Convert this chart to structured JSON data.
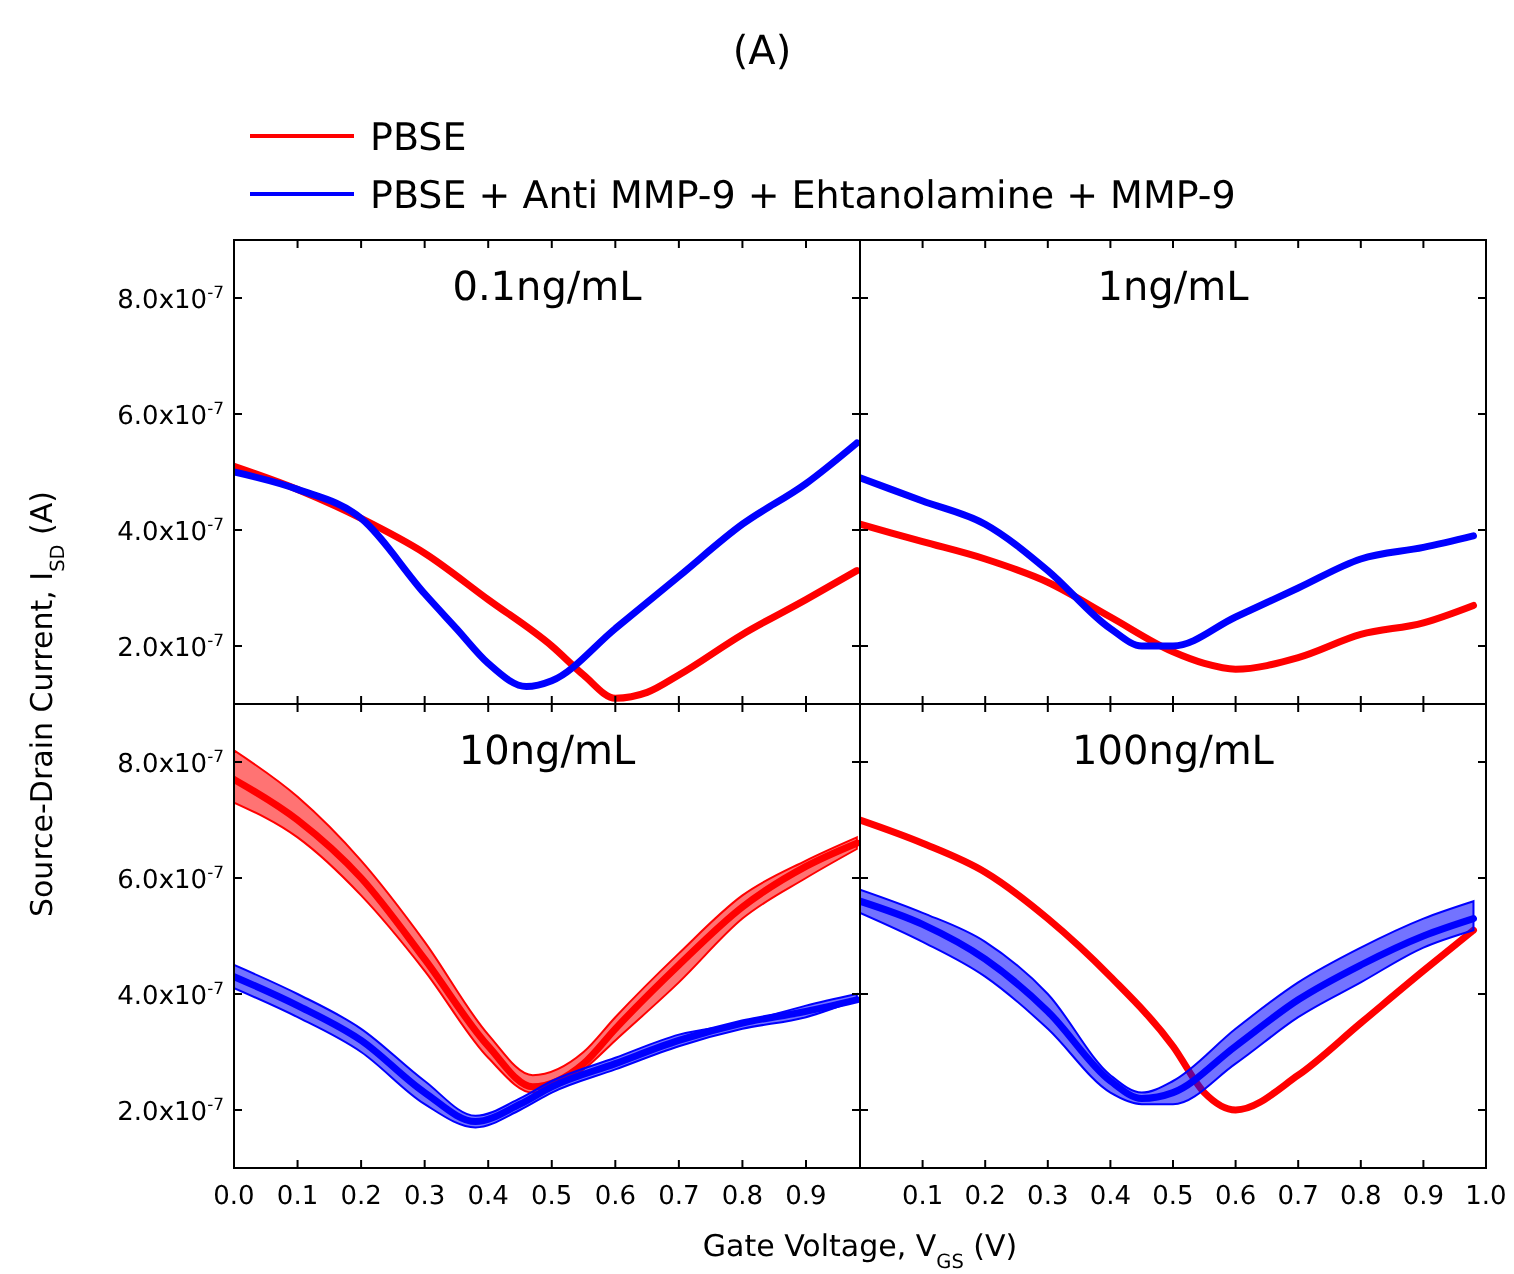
{
  "chart_data": [
    {
      "type": "line",
      "title": "(A)",
      "subtitle": "0.1ng/mL",
      "legend": "top",
      "tick_labels": "y",
      "xlim": [
        0,
        0.985
      ],
      "xticks": [
        0,
        0.1,
        0.2,
        0.3,
        0.4,
        0.5,
        0.6,
        0.7,
        0.8,
        0.9
      ],
      "ylim": [
        1e-07,
        9e-07
      ],
      "yticks": [
        {
          "value": 2e-07,
          "label": "2.0x10$^{-7}$"
        },
        {
          "value": 4e-07,
          "label": "4.0x10$^{-7}$"
        },
        {
          "value": 6e-07,
          "label": "6.0x10$^{-7}$"
        },
        {
          "value": 8e-07,
          "label": "8.0x10$^{-7}$"
        }
      ],
      "grid": false,
      "series": [
        {
          "name": "PBSE",
          "color": "#ff0000",
          "x": [
            0,
            0.1,
            0.2,
            0.3,
            0.4,
            0.5,
            0.55,
            0.6,
            0.65,
            0.7,
            0.8,
            0.9,
            0.98
          ],
          "values": [
            5.1e-07,
            4.7e-07,
            4.2e-07,
            3.6e-07,
            2.8e-07,
            2e-07,
            1.5e-07,
            1.1e-07,
            1.2e-07,
            1.5e-07,
            2.2e-07,
            2.8e-07,
            3.3e-07
          ]
        },
        {
          "name": "PBSE + Anti MMP-9 + Ehtanolamine + MMP-9",
          "color": "#0000ff",
          "x": [
            0,
            0.1,
            0.2,
            0.3,
            0.35,
            0.4,
            0.46,
            0.5,
            0.6,
            0.7,
            0.8,
            0.9,
            0.98
          ],
          "values": [
            5e-07,
            4.7e-07,
            4.2e-07,
            2.9e-07,
            2.3e-07,
            1.7e-07,
            1.3e-07,
            1.4e-07,
            2.3e-07,
            3.2e-07,
            4.1e-07,
            4.8e-07,
            5.5e-07
          ]
        }
      ]
    },
    {
      "type": "line",
      "subtitle": "1ng/mL",
      "tick_labels": false,
      "xlim": [
        0,
        1.0
      ],
      "xticks": [
        0.1,
        0.2,
        0.3,
        0.4,
        0.5,
        0.6,
        0.7,
        0.8,
        0.9
      ],
      "ylim": [
        1e-07,
        9e-07
      ],
      "yticks": [
        {
          "value": 2e-07,
          "label": null
        },
        {
          "value": 4e-07,
          "label": null
        },
        {
          "value": 6e-07,
          "label": null
        },
        {
          "value": 8e-07,
          "label": null
        }
      ],
      "grid": false,
      "series": [
        {
          "color": "#ff0000",
          "x": [
            0,
            0.1,
            0.2,
            0.3,
            0.4,
            0.5,
            0.55,
            0.6,
            0.7,
            0.8,
            0.9,
            0.98
          ],
          "values": [
            4.1e-07,
            3.8e-07,
            3.5e-07,
            3.1e-07,
            2.5e-07,
            1.9e-07,
            1.7e-07,
            1.6e-07,
            1.8e-07,
            2.2e-07,
            2.4e-07,
            2.7e-07
          ]
        },
        {
          "color": "#0000ff",
          "x": [
            0,
            0.1,
            0.2,
            0.3,
            0.4,
            0.45,
            0.5,
            0.6,
            0.7,
            0.8,
            0.9,
            0.98
          ],
          "values": [
            4.9e-07,
            4.5e-07,
            4.1e-07,
            3.3e-07,
            2.3e-07,
            2e-07,
            2e-07,
            2.5e-07,
            3e-07,
            3.5e-07,
            3.7e-07,
            3.9e-07
          ]
        }
      ]
    },
    {
      "type": "line",
      "subtitle": "10ng/mL",
      "ylabel": "Source-Drain Current, I$_{SD}$ (A)",
      "xlim": [
        0,
        0.985
      ],
      "xticks": [
        {
          "value": 0,
          "label": "0.0"
        },
        0.1,
        0.2,
        0.3,
        0.4,
        0.5,
        0.6,
        0.7,
        0.8,
        0.9
      ],
      "ylim": [
        1e-07,
        9e-07
      ],
      "yticks": [
        {
          "value": 2e-07,
          "label": "2.0x10$^{-7}$"
        },
        {
          "value": 4e-07,
          "label": "4.0x10$^{-7}$"
        },
        {
          "value": 6e-07,
          "label": "6.0x10$^{-7}$"
        },
        {
          "value": 8e-07,
          "label": "8.0x10$^{-7}$"
        }
      ],
      "grid": false,
      "series": [
        {
          "color": "#ff0000",
          "x": [
            0,
            0.1,
            0.2,
            0.3,
            0.4,
            0.47,
            0.55,
            0.6,
            0.7,
            0.8,
            0.9,
            0.98
          ],
          "values": [
            7.7e-07,
            7e-07,
            6e-07,
            4.6e-07,
            3.1e-07,
            2.4e-07,
            2.8e-07,
            3.4e-07,
            4.5e-07,
            5.5e-07,
            6.2e-07,
            6.6e-07
          ],
          "lower": [
            7.3e-07,
            6.7e-07,
            5.7e-07,
            4.4e-07,
            2.9e-07,
            2.3e-07,
            2.7e-07,
            3.2e-07,
            4.2e-07,
            5.3e-07,
            6e-07,
            6.5e-07
          ],
          "upper": [
            8.2e-07,
            7.4e-07,
            6.3e-07,
            4.9e-07,
            3.3e-07,
            2.6e-07,
            3e-07,
            3.6e-07,
            4.7e-07,
            5.7e-07,
            6.3e-07,
            6.7e-07
          ]
        },
        {
          "color": "#0000ff",
          "x": [
            0,
            0.1,
            0.2,
            0.3,
            0.38,
            0.45,
            0.5,
            0.6,
            0.7,
            0.8,
            0.9,
            0.98
          ],
          "values": [
            4.3e-07,
            3.8e-07,
            3.2e-07,
            2.3e-07,
            1.8e-07,
            2.1e-07,
            2.4e-07,
            2.8e-07,
            3.2e-07,
            3.5e-07,
            3.7e-07,
            3.9e-07
          ],
          "lower": [
            4.1e-07,
            3.6e-07,
            3e-07,
            2.1e-07,
            1.7e-07,
            2e-07,
            2.3e-07,
            2.7e-07,
            3.1e-07,
            3.4e-07,
            3.6e-07,
            3.9e-07
          ],
          "upper": [
            4.5e-07,
            4e-07,
            3.4e-07,
            2.5e-07,
            1.9e-07,
            2.2e-07,
            2.5e-07,
            2.9e-07,
            3.3e-07,
            3.5e-07,
            3.8e-07,
            4e-07
          ]
        }
      ]
    },
    {
      "type": "line",
      "subtitle": "100ng/mL",
      "xlabel": "Gate Voltage, V$_{GS}$ (V)",
      "tick_labels": "x",
      "xlim": [
        0,
        1.0
      ],
      "xticks": [
        0.1,
        0.2,
        0.3,
        0.4,
        0.5,
        0.6,
        0.7,
        0.8,
        0.9,
        {
          "value": 1.0,
          "label": "1.0"
        }
      ],
      "ylim": [
        1e-07,
        9e-07
      ],
      "yticks": [
        {
          "value": 2e-07,
          "label": null
        },
        {
          "value": 4e-07,
          "label": null
        },
        {
          "value": 6e-07,
          "label": null
        },
        {
          "value": 8e-07,
          "label": null
        }
      ],
      "grid": false,
      "series": [
        {
          "color": "#ff0000",
          "x": [
            0,
            0.1,
            0.2,
            0.3,
            0.4,
            0.5,
            0.55,
            0.6,
            0.7,
            0.8,
            0.9,
            0.98
          ],
          "values": [
            7e-07,
            6.6e-07,
            6.1e-07,
            5.3e-07,
            4.3e-07,
            3.1e-07,
            2.3e-07,
            2e-07,
            2.6e-07,
            3.5e-07,
            4.4e-07,
            5.1e-07
          ]
        },
        {
          "color": "#0000ff",
          "x": [
            0,
            0.1,
            0.2,
            0.3,
            0.4,
            0.45,
            0.5,
            0.6,
            0.7,
            0.8,
            0.9,
            0.98
          ],
          "values": [
            5.6e-07,
            5.2e-07,
            4.6e-07,
            3.7e-07,
            2.5e-07,
            2.2e-07,
            2.3e-07,
            3.1e-07,
            3.9e-07,
            4.5e-07,
            5e-07,
            5.3e-07
          ],
          "lower": [
            5.4e-07,
            4.9e-07,
            4.3e-07,
            3.4e-07,
            2.3e-07,
            2.1e-07,
            2.1e-07,
            2.8e-07,
            3.6e-07,
            4.2e-07,
            4.8e-07,
            5.1e-07
          ],
          "upper": [
            5.8e-07,
            5.4e-07,
            4.9e-07,
            4e-07,
            2.6e-07,
            2.3e-07,
            2.5e-07,
            3.4e-07,
            4.2e-07,
            4.8e-07,
            5.3e-07,
            5.6e-07
          ]
        }
      ]
    }
  ]
}
